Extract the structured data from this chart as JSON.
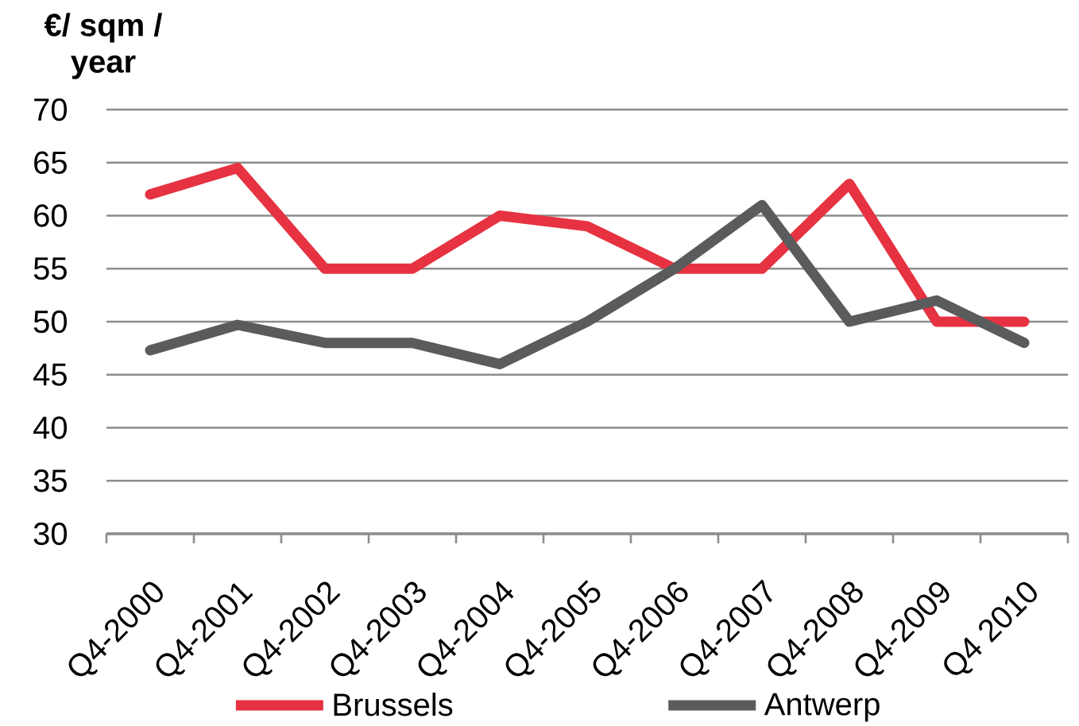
{
  "chart_data": {
    "type": "line",
    "ylabel": "€/ sqm / year",
    "categories": [
      "Q4-2000",
      "Q4-2001",
      "Q4-2002",
      "Q4-2003",
      "Q4-2004",
      "Q4-2005",
      "Q4-2006",
      "Q4-2007",
      "Q4-2008",
      "Q4-2009",
      "Q4 2010"
    ],
    "series": [
      {
        "name": "Brussels",
        "color": "#e63241",
        "values": [
          62,
          64.5,
          55,
          55,
          60,
          59,
          55,
          55,
          63,
          50,
          50
        ]
      },
      {
        "name": "Antwerp",
        "color": "#5a5b5d",
        "values": [
          47.3,
          49.7,
          48,
          48,
          46,
          50,
          55,
          61,
          50,
          52,
          48
        ]
      }
    ],
    "ylim": [
      30,
      70
    ],
    "yticks": [
      30,
      35,
      40,
      45,
      50,
      55,
      60,
      65,
      70
    ],
    "grid": "y",
    "legend": "bottom",
    "line_style": "solid"
  }
}
